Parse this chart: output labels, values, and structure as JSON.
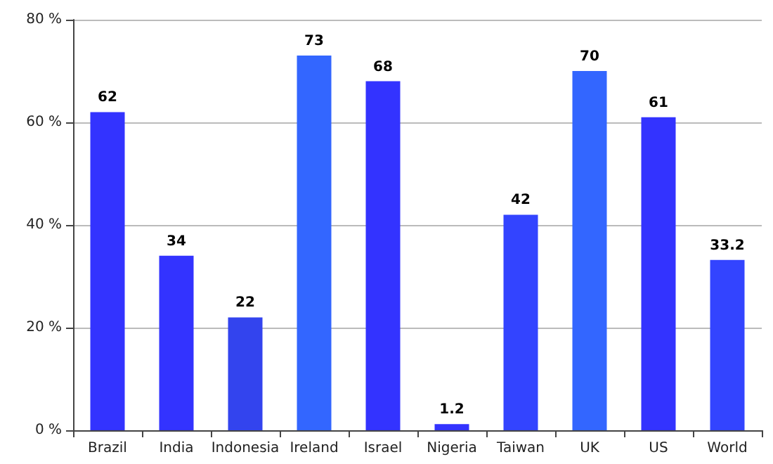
{
  "chart_data": {
    "type": "bar",
    "categories": [
      "Brazil",
      "India",
      "Indonesia",
      "Ireland",
      "Israel",
      "Nigeria",
      "Taiwan",
      "UK",
      "US",
      "World"
    ],
    "values": [
      62,
      34,
      22,
      73,
      68,
      1.2,
      42,
      70,
      61,
      33.2
    ],
    "colors": [
      "#3333ff",
      "#3333ff",
      "#3344ee",
      "#3366ff",
      "#3333ff",
      "#3333ff",
      "#3344ff",
      "#3366ff",
      "#3333ff",
      "#3344ff"
    ],
    "ylim": [
      0,
      80
    ],
    "yticks": [
      {
        "value": 0,
        "label": "0 %"
      },
      {
        "value": 20,
        "label": "20 %"
      },
      {
        "value": 40,
        "label": "40 %"
      },
      {
        "value": 60,
        "label": "60 %"
      },
      {
        "value": 80,
        "label": "80 %"
      }
    ],
    "grid": "y",
    "data_labels": true
  }
}
